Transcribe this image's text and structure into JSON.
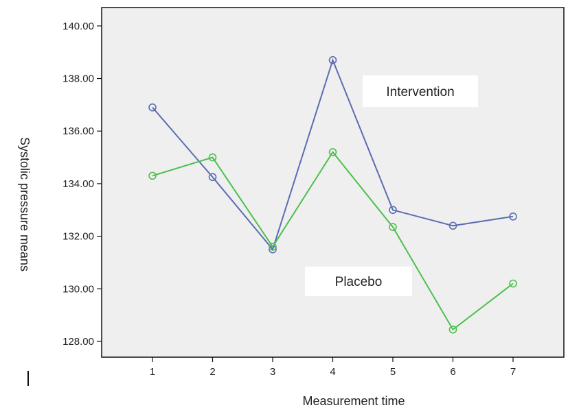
{
  "chart_data": {
    "type": "line",
    "title": "",
    "xlabel": "Measurement time",
    "ylabel": "Systolic pressure means",
    "categories": [
      "1",
      "2",
      "3",
      "4",
      "5",
      "6",
      "7"
    ],
    "y_ticks": [
      "128.00",
      "130.00",
      "132.00",
      "134.00",
      "136.00",
      "138.00",
      "140.00"
    ],
    "ylim": [
      127.4,
      140.7
    ],
    "grid": false,
    "series": [
      {
        "name": "Intervention",
        "color": "#5b6cb3",
        "values": [
          136.9,
          134.25,
          131.5,
          138.7,
          133.0,
          132.4,
          132.75
        ]
      },
      {
        "name": "Placebo",
        "color": "#4cbf4c",
        "values": [
          134.3,
          135.0,
          131.6,
          135.2,
          132.35,
          128.45,
          130.2
        ]
      }
    ],
    "annotations": [
      "Intervention",
      "Placebo"
    ]
  }
}
